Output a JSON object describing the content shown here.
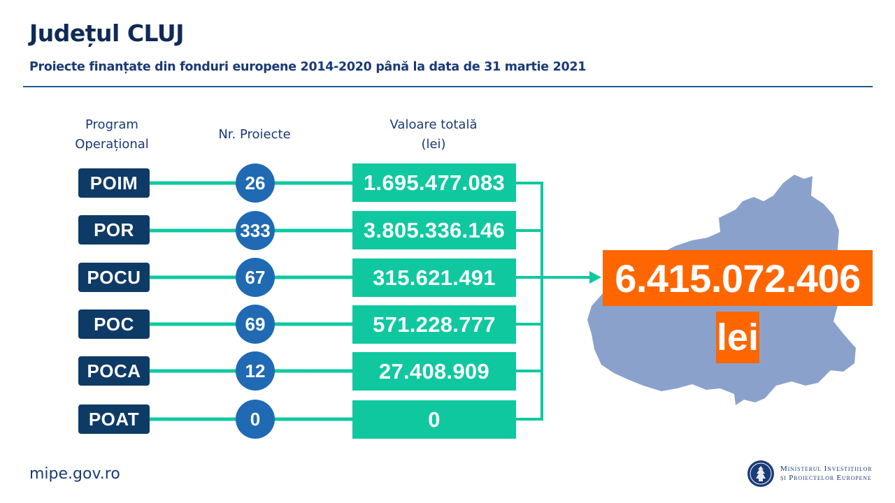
{
  "header": {
    "title": "Județul CLUJ",
    "subtitle": "Proiecte finanțate din fonduri europene 2014-2020 până la data de 31 martie 2021"
  },
  "columns": {
    "program_line1": "Program",
    "program_line2": "Operațional",
    "count": "Nr. Proiecte",
    "value_line1": "Valoare totală",
    "value_line2": "(lei)"
  },
  "rows": [
    {
      "program": "POIM",
      "count": "26",
      "value": "1.695.477.083"
    },
    {
      "program": "POR",
      "count": "333",
      "value": "3.805.336.146"
    },
    {
      "program": "POCU",
      "count": "67",
      "value": "315.621.491"
    },
    {
      "program": "POC",
      "count": "69",
      "value": "571.228.777"
    },
    {
      "program": "POCA",
      "count": "12",
      "value": "27.408.909"
    },
    {
      "program": "POAT",
      "count": "0",
      "value": "0"
    }
  ],
  "total": {
    "value": "6.415.072.406",
    "unit": "lei"
  },
  "footer": {
    "url": "mipe.gov.ro",
    "ministry_line1": "Ministerul Investițiilor",
    "ministry_line2": "și Proiectelor Europene",
    "emblem_icon": "government-emblem-icon"
  },
  "colors": {
    "navy": "#0e3a66",
    "circle_blue": "#1f6ab3",
    "teal": "#0fc8a0",
    "orange": "#ff6600",
    "map_blue": "#8aa2cb"
  }
}
